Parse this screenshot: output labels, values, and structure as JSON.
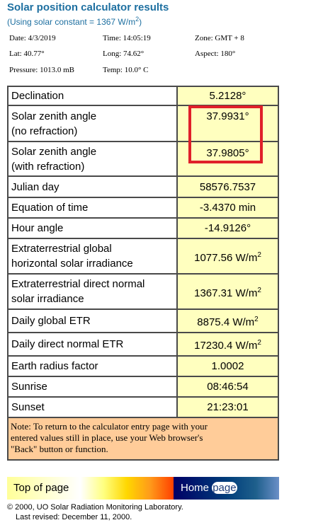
{
  "header": {
    "title": "Solar position calculator results",
    "subtitle_prefix": "(Using solar constant = 1367 W/m",
    "subtitle_sup": "2",
    "subtitle_suffix": ")"
  },
  "inputs": {
    "date": "Date: 4/3/2019",
    "time": "Time: 14:05:19",
    "zone": "Zone: GMT + 8",
    "lat": "Lat: 40.77°",
    "long": "Long: 74.62°",
    "aspect": "Aspect: 180°",
    "pressure": "Pressure: 1013.0 mB",
    "temp": "Temp: 10.0° C"
  },
  "results": [
    {
      "label_1": "Declination",
      "value": "5.2128°"
    },
    {
      "label_1": "Solar zenith angle",
      "label_2": "(no refraction)",
      "value": "37.9931°"
    },
    {
      "label_1": "Solar zenith angle",
      "label_2": "(with refraction)",
      "value": "37.9805°"
    },
    {
      "label_1": "Julian day",
      "value": "58576.7537"
    },
    {
      "label_1": "Equation of time",
      "value": "-3.4370 min"
    },
    {
      "label_1": "Hour angle",
      "value": "-14.9126°"
    },
    {
      "label_1": "Extraterrestrial global",
      "label_2": "horizontal solar irradiance",
      "value": "1077.56 W/m",
      "sup": "2"
    },
    {
      "label_1": "Extraterrestrial direct normal",
      "label_2": "solar irradiance",
      "value": "1367.31 W/m",
      "sup": "2"
    },
    {
      "label_1": "Daily global ETR",
      "value": "8875.4 W/m",
      "sup": "2"
    },
    {
      "label_1": "Daily direct normal ETR",
      "value": "17230.4 W/m",
      "sup": "2"
    },
    {
      "label_1": "Earth radius factor",
      "value": "1.0002"
    },
    {
      "label_1": "Sunrise",
      "value": "08:46:54"
    },
    {
      "label_1": "Sunset",
      "value": "21:23:01"
    }
  ],
  "note": {
    "line_1": "Note: To return to the calculator entry page with your",
    "line_2": "entered values still in place, use your Web browser's",
    "line_3": "\"Back\" button or function."
  },
  "nav": {
    "top_label": "Top of page",
    "home_label": "Home",
    "page_label": "page"
  },
  "footer": {
    "copyright": "© 2000, UO Solar Radiation Monitoring Laboratory.",
    "revised": "Last revised: December 11, 2000."
  },
  "colors": {
    "title": "#1d6fa0",
    "label_cell": "#ffffff",
    "value_cell": "#ffffbf",
    "note_cell": "#ffcc99",
    "highlight": "#e0202a",
    "nav_dark": "#000066"
  }
}
